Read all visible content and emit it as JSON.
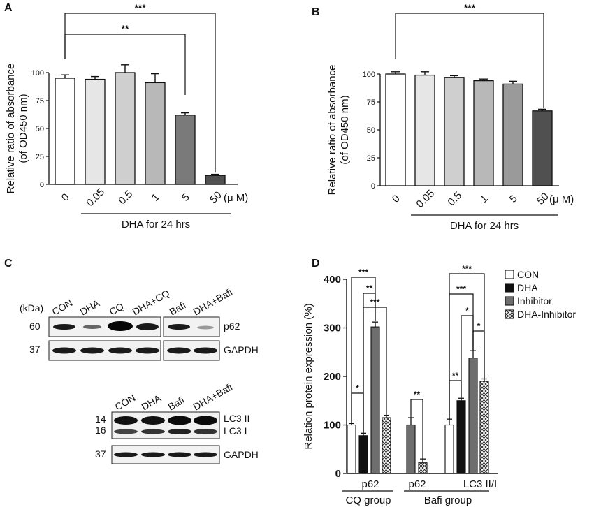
{
  "panels": {
    "A": {
      "letter": "A"
    },
    "B": {
      "letter": "B"
    },
    "C": {
      "letter": "C"
    },
    "D": {
      "letter": "D"
    }
  },
  "blots": {
    "kda_label": "(kDa)",
    "top_lanes": [
      "CON",
      "DHA",
      "CQ",
      "DHA+CQ",
      "Bafi",
      "DHA+Bafi"
    ],
    "top_markers": [
      "60",
      "37"
    ],
    "top_proteins": [
      "p62",
      "GAPDH"
    ],
    "bottom_lanes": [
      "CON",
      "DHA",
      "Bafi",
      "DHA+Bafi"
    ],
    "bottom_markers": [
      "14",
      "16",
      "37"
    ],
    "bottom_proteins": [
      "LC3 II",
      "LC3 I",
      "GAPDH"
    ]
  },
  "chart_data": [
    {
      "panel": "A",
      "type": "bar",
      "categories": [
        "0",
        "0.05",
        "0.5",
        "1",
        "5",
        "50"
      ],
      "values": [
        95,
        94,
        100,
        91,
        62,
        8
      ],
      "errors": [
        3,
        2.5,
        7,
        8,
        2,
        1
      ],
      "unit_label": "(μ M)",
      "xlabel": "DHA for 24 hrs",
      "ylabel": "Relative ratio of absorbance",
      "ylabel2": "(of OD450 nm)",
      "ylim": [
        0,
        100
      ],
      "yticks": [
        "0",
        "25",
        "50",
        "75",
        "100"
      ],
      "bar_colors": [
        "#ffffff",
        "#e6e6e6",
        "#cfcfcf",
        "#b8b8b8",
        "#7a7a7a",
        "#505050"
      ],
      "significance": [
        "***",
        "**"
      ]
    },
    {
      "panel": "B",
      "type": "bar",
      "categories": [
        "0",
        "0.05",
        "0.5",
        "1",
        "5",
        "50"
      ],
      "values": [
        100,
        99,
        97,
        94,
        91,
        67
      ],
      "errors": [
        2,
        3,
        1.5,
        1.5,
        2.5,
        1.5
      ],
      "unit_label": "(μ M)",
      "xlabel": "DHA for 24 hrs",
      "ylabel": "Relative ratio of absorbance",
      "ylabel2": "(of OD450 nm)",
      "ylim": [
        0,
        100
      ],
      "yticks": [
        "0",
        "25",
        "50",
        "75",
        "100"
      ],
      "bar_colors": [
        "#ffffff",
        "#e6e6e6",
        "#cfcfcf",
        "#b8b8b8",
        "#9a9a9a",
        "#505050"
      ],
      "significance": [
        "***"
      ]
    },
    {
      "panel": "D",
      "type": "bar",
      "ylabel": "Relation protein expression (%)",
      "ylim": [
        0,
        400
      ],
      "yticks": [
        "0",
        "100",
        "200",
        "300",
        "400"
      ],
      "groups": [
        {
          "label": "p62",
          "group": "CQ group",
          "bars": [
            {
              "series": "CON",
              "value": 100,
              "error": 3
            },
            {
              "series": "DHA",
              "value": 78,
              "error": 5
            },
            {
              "series": "Inhibitor",
              "value": 302,
              "error": 10
            },
            {
              "series": "DHA-Inhibitor",
              "value": 115,
              "error": 5
            }
          ]
        },
        {
          "label": "p62",
          "group": "Bafi group",
          "bars": [
            {
              "series": "Inhibitor",
              "value": 100,
              "error": 15
            },
            {
              "series": "DHA-Inhibitor",
              "value": 22,
              "error": 8
            }
          ]
        },
        {
          "label": "LC3 II/I",
          "group": "Bafi group",
          "bars": [
            {
              "series": "CON",
              "value": 100,
              "error": 12
            },
            {
              "series": "DHA",
              "value": 150,
              "error": 5
            },
            {
              "series": "Inhibitor",
              "value": 238,
              "error": 15
            },
            {
              "series": "DHA-Inhibitor",
              "value": 190,
              "error": 5
            }
          ]
        }
      ],
      "group_labels": [
        "CQ group",
        "Bafi group"
      ],
      "legend": [
        {
          "name": "CON",
          "fill": "#ffffff"
        },
        {
          "name": "DHA",
          "fill": "#111111"
        },
        {
          "name": "Inhibitor",
          "fill": "#6e6e6e"
        },
        {
          "name": "DHA-Inhibitor",
          "fill": "hatch"
        }
      ],
      "legend_position": "top-right",
      "significance": [
        "***",
        "**",
        "***",
        "*",
        "**",
        "***",
        "***",
        "*",
        "*",
        "**"
      ]
    }
  ]
}
